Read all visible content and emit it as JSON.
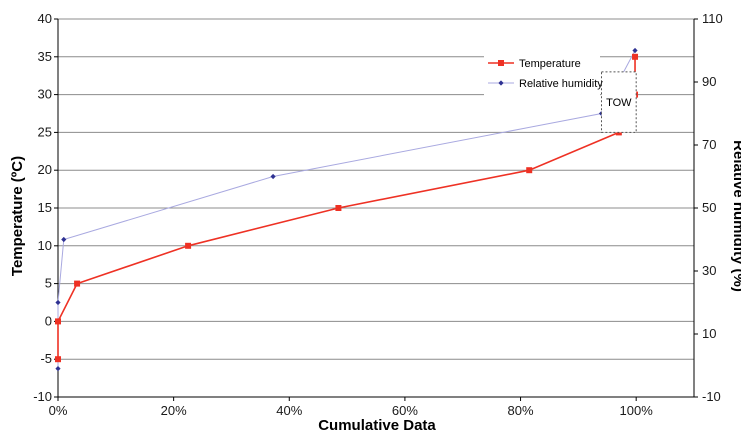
{
  "chart_data": {
    "type": "line",
    "xlabel": "Cumulative Data",
    "ylabel": "Temperature (ºC)",
    "y2label": "Relative humidity (%)",
    "xlim": [
      0,
      1.1
    ],
    "ylim": [
      -10,
      40
    ],
    "y2lim": [
      -10,
      110
    ],
    "x_ticks": [
      "0%",
      "20%",
      "40%",
      "60%",
      "80%",
      "100%"
    ],
    "y_ticks": [
      "-10",
      "-5",
      "0",
      "5",
      "10",
      "15",
      "20",
      "25",
      "30",
      "35",
      "40"
    ],
    "y2_ticks": [
      "-10",
      "10",
      "30",
      "50",
      "70",
      "90",
      "110"
    ],
    "grid": "horizontal",
    "legend_position": "top-right",
    "series": [
      {
        "name": "Temperature",
        "axis": "left",
        "color": "#ee3124",
        "marker": "square",
        "points": [
          {
            "x": 0.0,
            "y": -5
          },
          {
            "x": 0.0,
            "y": 0
          },
          {
            "x": 0.033,
            "y": 5
          },
          {
            "x": 0.225,
            "y": 10
          },
          {
            "x": 0.485,
            "y": 15
          },
          {
            "x": 0.815,
            "y": 20
          },
          {
            "x": 0.97,
            "y": 25
          },
          {
            "x": 0.998,
            "y": 30
          },
          {
            "x": 0.998,
            "y": 35
          }
        ]
      },
      {
        "name": "Relative humidity",
        "axis": "right",
        "color": "#2e3192",
        "line_color": "#a9a9e0",
        "marker": "diamond",
        "points": [
          {
            "x": 0.0,
            "y": -1
          },
          {
            "x": 0.0,
            "y": 20
          },
          {
            "x": 0.01,
            "y": 40
          },
          {
            "x": 0.372,
            "y": 60
          },
          {
            "x": 0.94,
            "y": 80
          },
          {
            "x": 0.998,
            "y": 100
          }
        ]
      }
    ],
    "annotations": [
      {
        "text": "TOW",
        "style": "dashed-box",
        "x_range": [
          0.94,
          1.0
        ],
        "y_range": [
          25,
          33
        ]
      }
    ]
  }
}
